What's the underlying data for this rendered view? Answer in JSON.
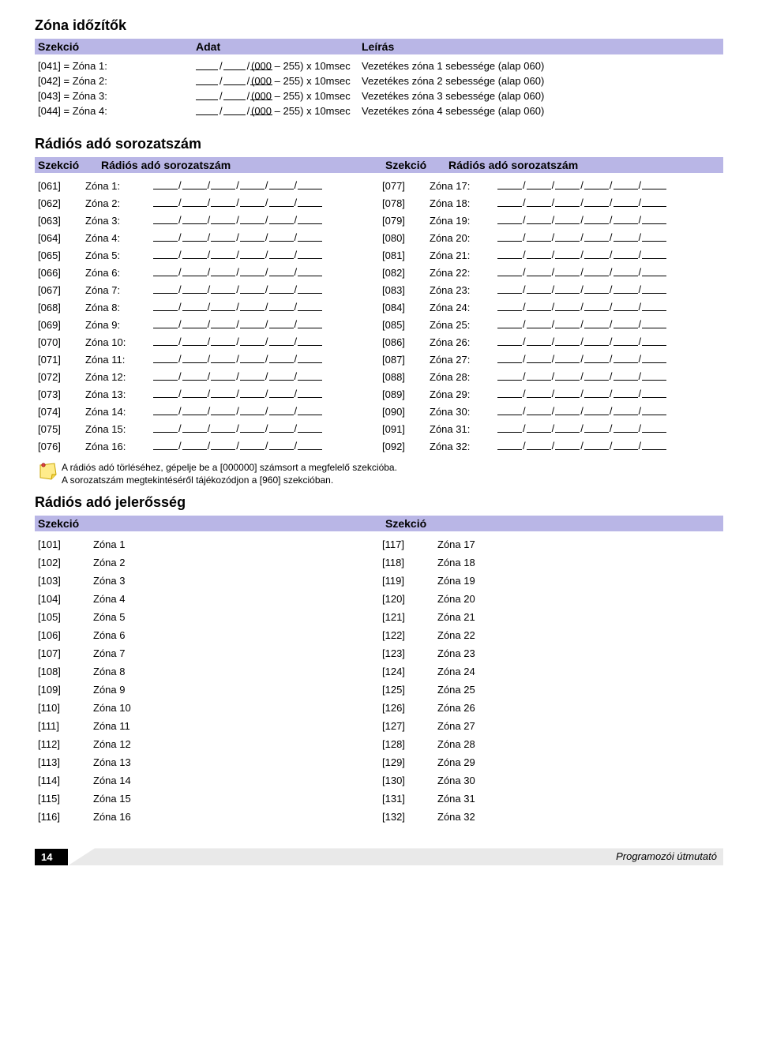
{
  "colors": {
    "header_bg": "#b9b6e6",
    "text": "#000000",
    "page_bg": "#ffffff",
    "footer_bar": "#e9e9e9"
  },
  "zona_idozotok": {
    "title": "Zóna időzítők",
    "headers": {
      "szekcio": "Szekció",
      "adat": "Adat",
      "leiras": "Leírás"
    },
    "range_label": "(000 – 255) x 10msec",
    "rows": [
      {
        "sec": "[041] = Zóna 1:",
        "desc": "Vezetékes zóna 1 sebessége (alap 060)"
      },
      {
        "sec": "[042] = Zóna 2:",
        "desc": "Vezetékes zóna 2 sebessége (alap 060)"
      },
      {
        "sec": "[043] = Zóna 3:",
        "desc": "Vezetékes zóna 3 sebessége (alap 060)"
      },
      {
        "sec": "[044] = Zóna 4:",
        "desc": "Vezetékes zóna 4 sebessége (alap 060)"
      }
    ]
  },
  "sorozatszam": {
    "title": "Rádiós adó sorozatszám",
    "headers": {
      "szekcio": "Szekció",
      "col": "Rádiós adó sorozatszám"
    },
    "left": [
      {
        "sec": "[061]",
        "lab": "Zóna 1:"
      },
      {
        "sec": "[062]",
        "lab": "Zóna 2:"
      },
      {
        "sec": "[063]",
        "lab": "Zóna 3:"
      },
      {
        "sec": "[064]",
        "lab": "Zóna 4:"
      },
      {
        "sec": "[065]",
        "lab": "Zóna 5:"
      },
      {
        "sec": "[066]",
        "lab": "Zóna 6:"
      },
      {
        "sec": "[067]",
        "lab": "Zóna 7:"
      },
      {
        "sec": "[068]",
        "lab": "Zóna 8:"
      },
      {
        "sec": "[069]",
        "lab": "Zóna 9:"
      },
      {
        "sec": "[070]",
        "lab": "Zóna 10:"
      },
      {
        "sec": "[071]",
        "lab": "Zóna 11:"
      },
      {
        "sec": "[072]",
        "lab": "Zóna 12:"
      },
      {
        "sec": "[073]",
        "lab": "Zóna 13:"
      },
      {
        "sec": "[074]",
        "lab": "Zóna 14:"
      },
      {
        "sec": "[075]",
        "lab": "Zóna 15:"
      },
      {
        "sec": "[076]",
        "lab": "Zóna 16:"
      }
    ],
    "right": [
      {
        "sec": "[077]",
        "lab": "Zóna 17:"
      },
      {
        "sec": "[078]",
        "lab": "Zóna 18:"
      },
      {
        "sec": "[079]",
        "lab": "Zóna 19:"
      },
      {
        "sec": "[080]",
        "lab": "Zóna 20:"
      },
      {
        "sec": "[081]",
        "lab": "Zóna 21:"
      },
      {
        "sec": "[082]",
        "lab": "Zóna 22:"
      },
      {
        "sec": "[083]",
        "lab": "Zóna 23:"
      },
      {
        "sec": "[084]",
        "lab": "Zóna 24:"
      },
      {
        "sec": "[085]",
        "lab": "Zóna 25:"
      },
      {
        "sec": "[086]",
        "lab": "Zóna 26:"
      },
      {
        "sec": "[087]",
        "lab": "Zóna 27:"
      },
      {
        "sec": "[088]",
        "lab": "Zóna 28:"
      },
      {
        "sec": "[089]",
        "lab": "Zóna 29:"
      },
      {
        "sec": "[090]",
        "lab": "Zóna 30:"
      },
      {
        "sec": "[091]",
        "lab": "Zóna 31:"
      },
      {
        "sec": "[092]",
        "lab": "Zóna 32:"
      }
    ],
    "note_line1": "A rádiós adó törléséhez, gépelje be a [000000] számsort a megfelelő szekcióba.",
    "note_line2": "A sorozatszám megtekintéséről tájékozódjon a [960] szekcióban."
  },
  "jelerosseg": {
    "title": "Rádiós adó jelerősség",
    "headers": {
      "szekcio": "Szekció"
    },
    "left": [
      {
        "sec": "[101]",
        "lab": "Zóna 1"
      },
      {
        "sec": "[102]",
        "lab": "Zóna 2"
      },
      {
        "sec": "[103]",
        "lab": "Zóna 3"
      },
      {
        "sec": "[104]",
        "lab": "Zóna 4"
      },
      {
        "sec": "[105]",
        "lab": "Zóna 5"
      },
      {
        "sec": "[106]",
        "lab": "Zóna 6"
      },
      {
        "sec": "[107]",
        "lab": "Zóna 7"
      },
      {
        "sec": "[108]",
        "lab": "Zóna 8"
      },
      {
        "sec": "[109]",
        "lab": "Zóna 9"
      },
      {
        "sec": "[110]",
        "lab": "Zóna 10"
      },
      {
        "sec": "[111]",
        "lab": "Zóna 11"
      },
      {
        "sec": "[112]",
        "lab": "Zóna 12"
      },
      {
        "sec": "[113]",
        "lab": "Zóna 13"
      },
      {
        "sec": "[114]",
        "lab": "Zóna 14"
      },
      {
        "sec": "[115]",
        "lab": "Zóna 15"
      },
      {
        "sec": "[116]",
        "lab": "Zóna 16"
      }
    ],
    "right": [
      {
        "sec": "[117]",
        "lab": "Zóna 17"
      },
      {
        "sec": "[118]",
        "lab": "Zóna 18"
      },
      {
        "sec": "[119]",
        "lab": "Zóna 19"
      },
      {
        "sec": "[120]",
        "lab": "Zóna 20"
      },
      {
        "sec": "[121]",
        "lab": "Zóna 21"
      },
      {
        "sec": "[122]",
        "lab": "Zóna 22"
      },
      {
        "sec": "[123]",
        "lab": "Zóna 23"
      },
      {
        "sec": "[124]",
        "lab": "Zóna 24"
      },
      {
        "sec": "[125]",
        "lab": "Zóna 25"
      },
      {
        "sec": "[126]",
        "lab": "Zóna 26"
      },
      {
        "sec": "[127]",
        "lab": "Zóna 27"
      },
      {
        "sec": "[128]",
        "lab": "Zóna 28"
      },
      {
        "sec": "[129]",
        "lab": "Zóna 29"
      },
      {
        "sec": "[130]",
        "lab": "Zóna 30"
      },
      {
        "sec": "[131]",
        "lab": "Zóna 31"
      },
      {
        "sec": "[132]",
        "lab": "Zóna 32"
      }
    ]
  },
  "footer": {
    "page": "14",
    "text": "Programozói útmutató"
  }
}
